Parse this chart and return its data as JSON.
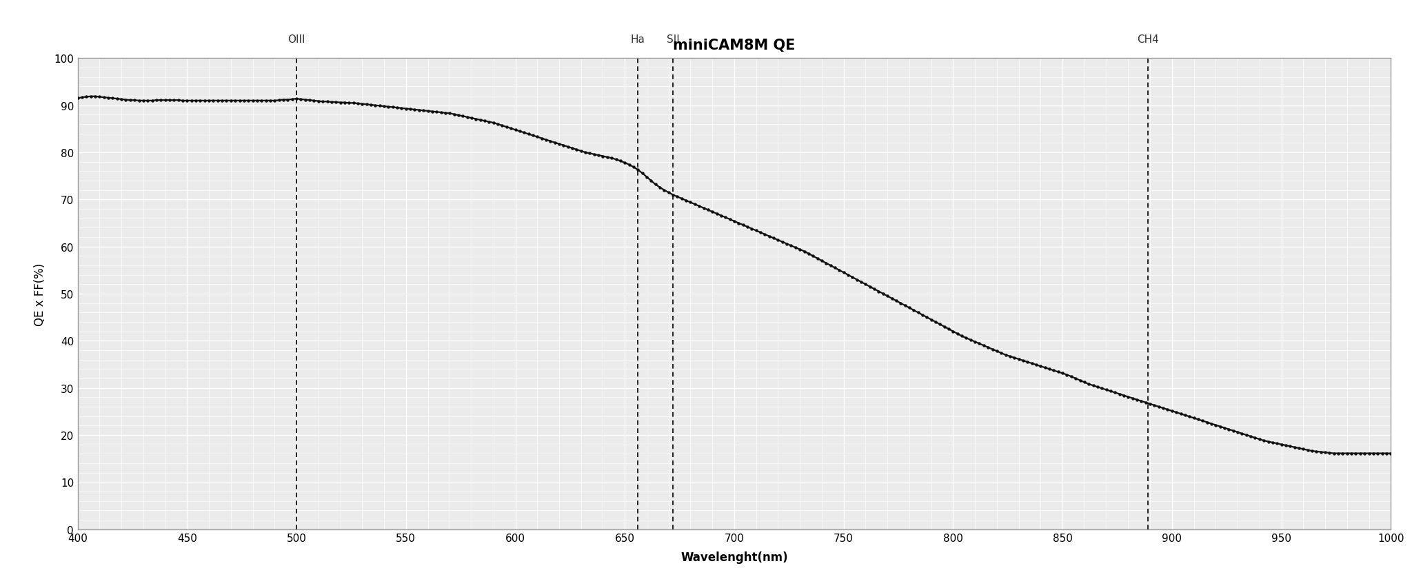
{
  "title": "miniCAM8M QE",
  "xlabel": "Wavelenght(nm)",
  "ylabel": "QE x FF(%)",
  "xlim": [
    400,
    1000
  ],
  "ylim": [
    0,
    100
  ],
  "xticks": [
    400,
    450,
    500,
    550,
    600,
    650,
    700,
    750,
    800,
    850,
    900,
    950,
    1000
  ],
  "yticks": [
    0,
    10,
    20,
    30,
    40,
    50,
    60,
    70,
    80,
    90,
    100
  ],
  "vlines": [
    {
      "x": 500,
      "label": "OIII"
    },
    {
      "x": 656,
      "label": "Ha"
    },
    {
      "x": 672,
      "label": "SII"
    },
    {
      "x": 889,
      "label": "CH4"
    }
  ],
  "curve_color": "#111111",
  "curve_linewidth": 1.6,
  "marker": "o",
  "marker_size": 2.2,
  "background_color": "#ebebeb",
  "grid_major_color": "#ffffff",
  "grid_minor_color": "#ffffff",
  "title_fontsize": 15,
  "label_fontsize": 12,
  "tick_fontsize": 11,
  "vline_label_fontsize": 11,
  "qe_data": [
    [
      400,
      91.5
    ],
    [
      402,
      91.7
    ],
    [
      404,
      91.8
    ],
    [
      406,
      91.9
    ],
    [
      408,
      91.9
    ],
    [
      410,
      91.8
    ],
    [
      412,
      91.7
    ],
    [
      414,
      91.6
    ],
    [
      416,
      91.5
    ],
    [
      418,
      91.4
    ],
    [
      420,
      91.3
    ],
    [
      422,
      91.2
    ],
    [
      424,
      91.1
    ],
    [
      426,
      91.1
    ],
    [
      428,
      91.0
    ],
    [
      430,
      91.0
    ],
    [
      432,
      91.0
    ],
    [
      434,
      91.0
    ],
    [
      436,
      91.1
    ],
    [
      438,
      91.1
    ],
    [
      440,
      91.1
    ],
    [
      442,
      91.1
    ],
    [
      444,
      91.1
    ],
    [
      446,
      91.1
    ],
    [
      448,
      91.0
    ],
    [
      450,
      91.0
    ],
    [
      452,
      91.0
    ],
    [
      454,
      91.0
    ],
    [
      456,
      91.0
    ],
    [
      458,
      91.0
    ],
    [
      460,
      91.0
    ],
    [
      462,
      91.0
    ],
    [
      464,
      91.0
    ],
    [
      466,
      91.0
    ],
    [
      468,
      91.0
    ],
    [
      470,
      91.0
    ],
    [
      472,
      91.0
    ],
    [
      474,
      91.0
    ],
    [
      476,
      91.0
    ],
    [
      478,
      91.0
    ],
    [
      480,
      91.0
    ],
    [
      482,
      91.0
    ],
    [
      484,
      91.0
    ],
    [
      486,
      91.0
    ],
    [
      488,
      91.0
    ],
    [
      490,
      91.0
    ],
    [
      492,
      91.1
    ],
    [
      494,
      91.2
    ],
    [
      496,
      91.2
    ],
    [
      498,
      91.3
    ],
    [
      500,
      91.4
    ],
    [
      502,
      91.3
    ],
    [
      504,
      91.2
    ],
    [
      506,
      91.1
    ],
    [
      508,
      91.0
    ],
    [
      510,
      90.9
    ],
    [
      512,
      90.8
    ],
    [
      514,
      90.8
    ],
    [
      516,
      90.7
    ],
    [
      518,
      90.7
    ],
    [
      520,
      90.6
    ],
    [
      522,
      90.6
    ],
    [
      524,
      90.5
    ],
    [
      526,
      90.5
    ],
    [
      528,
      90.4
    ],
    [
      530,
      90.3
    ],
    [
      532,
      90.2
    ],
    [
      534,
      90.1
    ],
    [
      536,
      90.0
    ],
    [
      538,
      89.9
    ],
    [
      540,
      89.8
    ],
    [
      542,
      89.7
    ],
    [
      544,
      89.6
    ],
    [
      546,
      89.5
    ],
    [
      548,
      89.4
    ],
    [
      550,
      89.3
    ],
    [
      552,
      89.2
    ],
    [
      554,
      89.1
    ],
    [
      556,
      89.0
    ],
    [
      558,
      88.9
    ],
    [
      560,
      88.8
    ],
    [
      562,
      88.7
    ],
    [
      564,
      88.6
    ],
    [
      566,
      88.5
    ],
    [
      568,
      88.4
    ],
    [
      570,
      88.3
    ],
    [
      572,
      88.1
    ],
    [
      574,
      87.9
    ],
    [
      576,
      87.7
    ],
    [
      578,
      87.5
    ],
    [
      580,
      87.3
    ],
    [
      582,
      87.1
    ],
    [
      584,
      86.9
    ],
    [
      586,
      86.7
    ],
    [
      588,
      86.5
    ],
    [
      590,
      86.3
    ],
    [
      592,
      86.0
    ],
    [
      594,
      85.7
    ],
    [
      596,
      85.4
    ],
    [
      598,
      85.1
    ],
    [
      600,
      84.8
    ],
    [
      602,
      84.5
    ],
    [
      604,
      84.2
    ],
    [
      606,
      83.9
    ],
    [
      608,
      83.6
    ],
    [
      610,
      83.3
    ],
    [
      612,
      83.0
    ],
    [
      614,
      82.7
    ],
    [
      616,
      82.4
    ],
    [
      618,
      82.1
    ],
    [
      620,
      81.8
    ],
    [
      622,
      81.5
    ],
    [
      624,
      81.2
    ],
    [
      626,
      80.9
    ],
    [
      628,
      80.6
    ],
    [
      630,
      80.3
    ],
    [
      632,
      80.0
    ],
    [
      634,
      79.8
    ],
    [
      636,
      79.6
    ],
    [
      638,
      79.4
    ],
    [
      640,
      79.2
    ],
    [
      642,
      79.0
    ],
    [
      644,
      78.8
    ],
    [
      646,
      78.5
    ],
    [
      648,
      78.2
    ],
    [
      650,
      77.8
    ],
    [
      652,
      77.4
    ],
    [
      654,
      76.9
    ],
    [
      656,
      76.3
    ],
    [
      658,
      75.6
    ],
    [
      660,
      74.8
    ],
    [
      662,
      74.0
    ],
    [
      664,
      73.2
    ],
    [
      666,
      72.6
    ],
    [
      668,
      72.0
    ],
    [
      670,
      71.5
    ],
    [
      672,
      71.0
    ],
    [
      674,
      70.6
    ],
    [
      676,
      70.2
    ],
    [
      678,
      69.8
    ],
    [
      680,
      69.4
    ],
    [
      682,
      69.0
    ],
    [
      684,
      68.6
    ],
    [
      686,
      68.2
    ],
    [
      688,
      67.8
    ],
    [
      690,
      67.4
    ],
    [
      692,
      67.0
    ],
    [
      694,
      66.6
    ],
    [
      696,
      66.2
    ],
    [
      698,
      65.8
    ],
    [
      700,
      65.4
    ],
    [
      702,
      65.0
    ],
    [
      704,
      64.6
    ],
    [
      706,
      64.2
    ],
    [
      708,
      63.8
    ],
    [
      710,
      63.4
    ],
    [
      712,
      63.0
    ],
    [
      714,
      62.6
    ],
    [
      716,
      62.2
    ],
    [
      718,
      61.8
    ],
    [
      720,
      61.4
    ],
    [
      722,
      61.0
    ],
    [
      724,
      60.6
    ],
    [
      726,
      60.2
    ],
    [
      728,
      59.8
    ],
    [
      730,
      59.4
    ],
    [
      732,
      59.0
    ],
    [
      734,
      58.5
    ],
    [
      736,
      58.0
    ],
    [
      738,
      57.5
    ],
    [
      740,
      57.0
    ],
    [
      742,
      56.5
    ],
    [
      744,
      56.0
    ],
    [
      746,
      55.5
    ],
    [
      748,
      55.0
    ],
    [
      750,
      54.5
    ],
    [
      752,
      54.0
    ],
    [
      754,
      53.5
    ],
    [
      756,
      53.0
    ],
    [
      758,
      52.5
    ],
    [
      760,
      52.0
    ],
    [
      762,
      51.5
    ],
    [
      764,
      51.0
    ],
    [
      766,
      50.5
    ],
    [
      768,
      50.0
    ],
    [
      770,
      49.5
    ],
    [
      772,
      49.0
    ],
    [
      774,
      48.5
    ],
    [
      776,
      48.0
    ],
    [
      778,
      47.5
    ],
    [
      780,
      47.0
    ],
    [
      782,
      46.5
    ],
    [
      784,
      46.0
    ],
    [
      786,
      45.5
    ],
    [
      788,
      45.0
    ],
    [
      790,
      44.5
    ],
    [
      792,
      44.0
    ],
    [
      794,
      43.5
    ],
    [
      796,
      43.0
    ],
    [
      798,
      42.5
    ],
    [
      800,
      42.0
    ],
    [
      802,
      41.5
    ],
    [
      804,
      41.0
    ],
    [
      806,
      40.6
    ],
    [
      808,
      40.2
    ],
    [
      810,
      39.8
    ],
    [
      812,
      39.4
    ],
    [
      814,
      39.0
    ],
    [
      816,
      38.6
    ],
    [
      818,
      38.2
    ],
    [
      820,
      37.8
    ],
    [
      822,
      37.4
    ],
    [
      824,
      37.0
    ],
    [
      826,
      36.7
    ],
    [
      828,
      36.4
    ],
    [
      830,
      36.1
    ],
    [
      832,
      35.8
    ],
    [
      834,
      35.5
    ],
    [
      836,
      35.2
    ],
    [
      838,
      34.9
    ],
    [
      840,
      34.6
    ],
    [
      842,
      34.3
    ],
    [
      844,
      34.0
    ],
    [
      846,
      33.7
    ],
    [
      848,
      33.4
    ],
    [
      850,
      33.1
    ],
    [
      852,
      32.8
    ],
    [
      854,
      32.4
    ],
    [
      856,
      32.0
    ],
    [
      858,
      31.6
    ],
    [
      860,
      31.2
    ],
    [
      862,
      30.8
    ],
    [
      864,
      30.5
    ],
    [
      866,
      30.2
    ],
    [
      868,
      29.9
    ],
    [
      870,
      29.6
    ],
    [
      872,
      29.3
    ],
    [
      874,
      29.0
    ],
    [
      876,
      28.7
    ],
    [
      878,
      28.4
    ],
    [
      880,
      28.1
    ],
    [
      882,
      27.8
    ],
    [
      884,
      27.5
    ],
    [
      886,
      27.2
    ],
    [
      888,
      26.9
    ],
    [
      890,
      26.6
    ],
    [
      892,
      26.3
    ],
    [
      894,
      26.0
    ],
    [
      896,
      25.7
    ],
    [
      898,
      25.4
    ],
    [
      900,
      25.1
    ],
    [
      902,
      24.8
    ],
    [
      904,
      24.5
    ],
    [
      906,
      24.2
    ],
    [
      908,
      23.9
    ],
    [
      910,
      23.6
    ],
    [
      912,
      23.3
    ],
    [
      914,
      23.0
    ],
    [
      916,
      22.7
    ],
    [
      918,
      22.4
    ],
    [
      920,
      22.1
    ],
    [
      922,
      21.8
    ],
    [
      924,
      21.5
    ],
    [
      926,
      21.2
    ],
    [
      928,
      20.9
    ],
    [
      930,
      20.6
    ],
    [
      932,
      20.3
    ],
    [
      934,
      20.0
    ],
    [
      936,
      19.7
    ],
    [
      938,
      19.4
    ],
    [
      940,
      19.1
    ],
    [
      942,
      18.8
    ],
    [
      944,
      18.6
    ],
    [
      946,
      18.4
    ],
    [
      948,
      18.2
    ],
    [
      950,
      18.0
    ],
    [
      952,
      17.8
    ],
    [
      954,
      17.6
    ],
    [
      956,
      17.4
    ],
    [
      958,
      17.2
    ],
    [
      960,
      17.0
    ],
    [
      962,
      16.8
    ],
    [
      964,
      16.6
    ],
    [
      966,
      16.5
    ],
    [
      968,
      16.4
    ],
    [
      970,
      16.3
    ],
    [
      972,
      16.2
    ],
    [
      974,
      16.1
    ],
    [
      976,
      16.1
    ],
    [
      978,
      16.1
    ],
    [
      980,
      16.1
    ],
    [
      982,
      16.1
    ],
    [
      984,
      16.1
    ],
    [
      986,
      16.1
    ],
    [
      988,
      16.1
    ],
    [
      990,
      16.1
    ],
    [
      992,
      16.1
    ],
    [
      994,
      16.1
    ],
    [
      996,
      16.1
    ],
    [
      998,
      16.1
    ],
    [
      1000,
      16.1
    ]
  ]
}
